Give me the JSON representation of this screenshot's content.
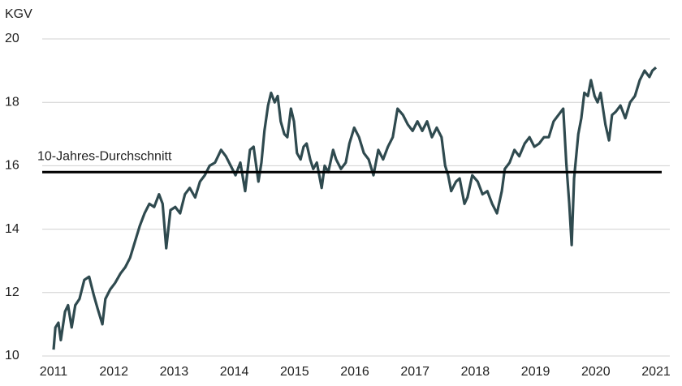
{
  "chart_data": {
    "type": "line",
    "y_axis_label": "KGV",
    "ylim": [
      10,
      20
    ],
    "yticks": [
      10,
      12,
      14,
      16,
      18,
      20
    ],
    "xlim": [
      2011,
      2021
    ],
    "xticks": [
      2011,
      2012,
      2013,
      2014,
      2015,
      2016,
      2017,
      2018,
      2019,
      2020,
      2021
    ],
    "grid": true,
    "reference_line": {
      "label": "10-Jahres-Durchschnitt",
      "value": 15.8,
      "color": "#000000"
    },
    "series": [
      {
        "color": "#2f4a4f",
        "x": [
          2011.0,
          2011.03,
          2011.08,
          2011.12,
          2011.19,
          2011.24,
          2011.3,
          2011.36,
          2011.43,
          2011.51,
          2011.59,
          2011.67,
          2011.73,
          2011.81,
          2011.86,
          2011.94,
          2012.02,
          2012.11,
          2012.19,
          2012.27,
          2012.35,
          2012.43,
          2012.51,
          2012.59,
          2012.67,
          2012.75,
          2012.81,
          2012.87,
          2012.94,
          2013.02,
          2013.1,
          2013.18,
          2013.26,
          2013.35,
          2013.43,
          2013.51,
          2013.59,
          2013.68,
          2013.78,
          2013.86,
          2013.94,
          2014.02,
          2014.1,
          2014.18,
          2014.26,
          2014.32,
          2014.4,
          2014.45,
          2014.5,
          2014.56,
          2014.61,
          2014.67,
          2014.72,
          2014.77,
          2014.83,
          2014.88,
          2014.94,
          2014.99,
          2015.04,
          2015.1,
          2015.15,
          2015.2,
          2015.26,
          2015.31,
          2015.37,
          2015.45,
          2015.5,
          2015.56,
          2015.64,
          2015.69,
          2015.77,
          2015.85,
          2015.91,
          2015.99,
          2016.07,
          2016.15,
          2016.23,
          2016.31,
          2016.39,
          2016.47,
          2016.55,
          2016.63,
          2016.71,
          2016.8,
          2016.88,
          2016.96,
          2017.04,
          2017.12,
          2017.2,
          2017.28,
          2017.36,
          2017.44,
          2017.5,
          2017.55,
          2017.6,
          2017.68,
          2017.74,
          2017.82,
          2017.87,
          2017.95,
          2018.04,
          2018.12,
          2018.2,
          2018.28,
          2018.36,
          2018.44,
          2018.49,
          2018.57,
          2018.65,
          2018.73,
          2018.82,
          2018.9,
          2018.98,
          2019.06,
          2019.14,
          2019.22,
          2019.3,
          2019.38,
          2019.46,
          2019.51,
          2019.56,
          2019.6,
          2019.64,
          2019.71,
          2019.76,
          2019.81,
          2019.87,
          2019.92,
          2019.98,
          2020.03,
          2020.08,
          2020.16,
          2020.22,
          2020.27,
          2020.33,
          2020.41,
          2020.49,
          2020.57,
          2020.65,
          2020.73,
          2020.81,
          2020.89,
          2020.94,
          2021.0
        ],
        "values": [
          10.2,
          10.9,
          11.05,
          10.5,
          11.4,
          11.6,
          10.9,
          11.6,
          11.8,
          12.4,
          12.5,
          11.9,
          11.5,
          11.0,
          11.8,
          12.1,
          12.3,
          12.6,
          12.8,
          13.1,
          13.6,
          14.1,
          14.5,
          14.8,
          14.7,
          15.1,
          14.8,
          13.4,
          14.6,
          14.7,
          14.5,
          15.1,
          15.3,
          15.0,
          15.5,
          15.7,
          16.0,
          16.1,
          16.5,
          16.3,
          16.0,
          15.7,
          16.1,
          15.2,
          16.5,
          16.6,
          15.5,
          16.1,
          17.1,
          17.9,
          18.3,
          18.0,
          18.2,
          17.4,
          17.0,
          16.9,
          17.8,
          17.4,
          16.4,
          16.2,
          16.6,
          16.7,
          16.2,
          15.9,
          16.1,
          15.3,
          16.0,
          15.8,
          16.5,
          16.2,
          15.9,
          16.1,
          16.7,
          17.2,
          16.9,
          16.4,
          16.2,
          15.7,
          16.5,
          16.2,
          16.6,
          16.9,
          17.8,
          17.6,
          17.3,
          17.1,
          17.4,
          17.1,
          17.4,
          16.9,
          17.2,
          16.9,
          16.0,
          15.7,
          15.2,
          15.5,
          15.6,
          14.8,
          15.0,
          15.7,
          15.5,
          15.1,
          15.2,
          14.8,
          14.5,
          15.2,
          15.9,
          16.1,
          16.5,
          16.3,
          16.7,
          16.9,
          16.6,
          16.7,
          16.9,
          16.9,
          17.4,
          17.6,
          17.8,
          16.1,
          14.8,
          13.5,
          15.6,
          17.0,
          17.5,
          18.3,
          18.2,
          18.7,
          18.2,
          18.0,
          18.3,
          17.3,
          16.8,
          17.6,
          17.7,
          17.9,
          17.5,
          18.0,
          18.2,
          18.7,
          19.0,
          18.8,
          19.0,
          19.1
        ]
      }
    ]
  }
}
